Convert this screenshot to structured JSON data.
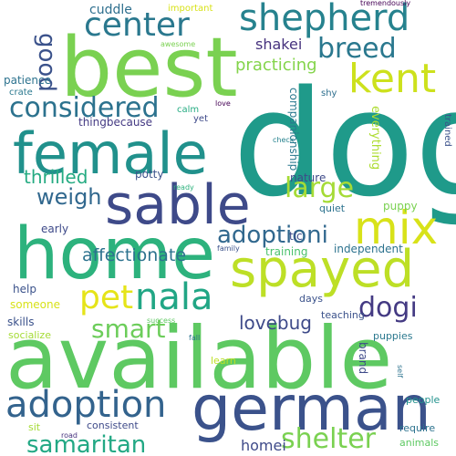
{
  "words": [
    {
      "text": "dog",
      "color": "#1f9a8a",
      "vertical": false
    },
    {
      "text": "available",
      "color": "#5ec962",
      "vertical": false
    },
    {
      "text": "best",
      "color": "#7ad151",
      "vertical": false
    },
    {
      "text": "home",
      "color": "#2db27d",
      "vertical": false
    },
    {
      "text": "german",
      "color": "#3b528b",
      "vertical": false
    },
    {
      "text": "female",
      "color": "#21918c",
      "vertical": false
    },
    {
      "text": "sable",
      "color": "#3e4a89",
      "vertical": false
    },
    {
      "text": "spayed",
      "color": "#bddf26",
      "vertical": false
    },
    {
      "text": "shepherd",
      "color": "#26828e",
      "vertical": false
    },
    {
      "text": "center",
      "color": "#2a788e",
      "vertical": false
    },
    {
      "text": "mix",
      "color": "#d8e219",
      "vertical": false
    },
    {
      "text": "pet",
      "color": "#e5e419",
      "vertical": false
    },
    {
      "text": "nala",
      "color": "#21a685",
      "vertical": false
    },
    {
      "text": "adoption",
      "color": "#33638d",
      "vertical": false
    },
    {
      "text": "considered",
      "color": "#2c728e",
      "vertical": false
    },
    {
      "text": "kent",
      "color": "#cde11d",
      "vertical": false
    },
    {
      "text": "adoptioni",
      "color": "#31688e",
      "vertical": false
    },
    {
      "text": "breed",
      "color": "#2a788e",
      "vertical": false
    },
    {
      "text": "large",
      "color": "#a5db36",
      "vertical": false
    },
    {
      "text": "dogi",
      "color": "#443a83",
      "vertical": false
    },
    {
      "text": "smart",
      "color": "#6ccd5a",
      "vertical": false
    },
    {
      "text": "shelter",
      "color": "#7ad151",
      "vertical": false
    },
    {
      "text": "samaritan",
      "color": "#22a884",
      "vertical": false
    },
    {
      "text": "good",
      "color": "#3b528b",
      "vertical": true
    },
    {
      "text": "weigh",
      "color": "#31688e",
      "vertical": false
    },
    {
      "text": "lovebug",
      "color": "#3e4a89",
      "vertical": false
    },
    {
      "text": "affectionate",
      "color": "#2c728e",
      "vertical": false
    },
    {
      "text": "thrilled",
      "color": "#25ab82",
      "vertical": false
    },
    {
      "text": "practicing",
      "color": "#84d44b",
      "vertical": false
    },
    {
      "text": "shakei",
      "color": "#46327e",
      "vertical": false
    },
    {
      "text": "homei",
      "color": "#3e4a89",
      "vertical": false
    },
    {
      "text": "cuddle",
      "color": "#2e6f8e",
      "vertical": false
    },
    {
      "text": "potty",
      "color": "#3b528b",
      "vertical": false
    },
    {
      "text": "thingbecause",
      "color": "#443a83",
      "vertical": false
    },
    {
      "text": "patience",
      "color": "#2c728e",
      "vertical": false
    },
    {
      "text": "everything",
      "color": "#addc30",
      "vertical": true
    },
    {
      "text": "companionship",
      "color": "#2a788e",
      "vertical": true
    },
    {
      "text": "puppy",
      "color": "#7ad151",
      "vertical": false
    },
    {
      "text": "nature",
      "color": "#3e4a89",
      "vertical": false
    },
    {
      "text": "quiet",
      "color": "#2c728e",
      "vertical": false
    },
    {
      "text": "tlc",
      "color": "#3e4a89",
      "vertical": false
    },
    {
      "text": "independent",
      "color": "#2c728e",
      "vertical": false
    },
    {
      "text": "training",
      "color": "#4ac16d",
      "vertical": false
    },
    {
      "text": "early",
      "color": "#3e4a89",
      "vertical": false
    },
    {
      "text": "help",
      "color": "#3b528b",
      "vertical": false
    },
    {
      "text": "someone",
      "color": "#d8e219",
      "vertical": false
    },
    {
      "text": "skills",
      "color": "#3b528b",
      "vertical": false
    },
    {
      "text": "socialize",
      "color": "#a5db36",
      "vertical": false
    },
    {
      "text": "days",
      "color": "#3b528b",
      "vertical": false
    },
    {
      "text": "teaching",
      "color": "#3b528b",
      "vertical": false
    },
    {
      "text": "puppies",
      "color": "#2a788e",
      "vertical": false
    },
    {
      "text": "learn",
      "color": "#bddf26",
      "vertical": false
    },
    {
      "text": "brand",
      "color": "#3e4a89",
      "vertical": true
    },
    {
      "text": "people",
      "color": "#21918c",
      "vertical": false
    },
    {
      "text": "consistent",
      "color": "#3e4a89",
      "vertical": false
    },
    {
      "text": "require",
      "color": "#2c728e",
      "vertical": false
    },
    {
      "text": "animals",
      "color": "#5ec962",
      "vertical": false
    },
    {
      "text": "sit",
      "color": "#a5db36",
      "vertical": false
    },
    {
      "text": "crate",
      "color": "#2a788e",
      "vertical": false
    },
    {
      "text": "calm",
      "color": "#25ab82",
      "vertical": false
    },
    {
      "text": "yet",
      "color": "#3e4a89",
      "vertical": false
    },
    {
      "text": "shy",
      "color": "#2e6f8e",
      "vertical": false
    },
    {
      "text": "important",
      "color": "#d8e219",
      "vertical": false
    },
    {
      "text": "trained",
      "color": "#3b528b",
      "vertical": true
    },
    {
      "text": "awesome",
      "color": "#7ad151",
      "vertical": false
    },
    {
      "text": "tremendously",
      "color": "#440154",
      "vertical": false
    },
    {
      "text": "love",
      "color": "#440154",
      "vertical": false
    },
    {
      "text": "check",
      "color": "#26828e",
      "vertical": false
    },
    {
      "text": "ready",
      "color": "#2db27d",
      "vertical": false
    },
    {
      "text": "family",
      "color": "#3b528b",
      "vertical": false
    },
    {
      "text": "success",
      "color": "#5ec962",
      "vertical": false
    },
    {
      "text": "fall",
      "color": "#2c728e",
      "vertical": false
    },
    {
      "text": "self",
      "color": "#2c728e",
      "vertical": true
    },
    {
      "text": "road",
      "color": "#46327e",
      "vertical": false
    }
  ]
}
